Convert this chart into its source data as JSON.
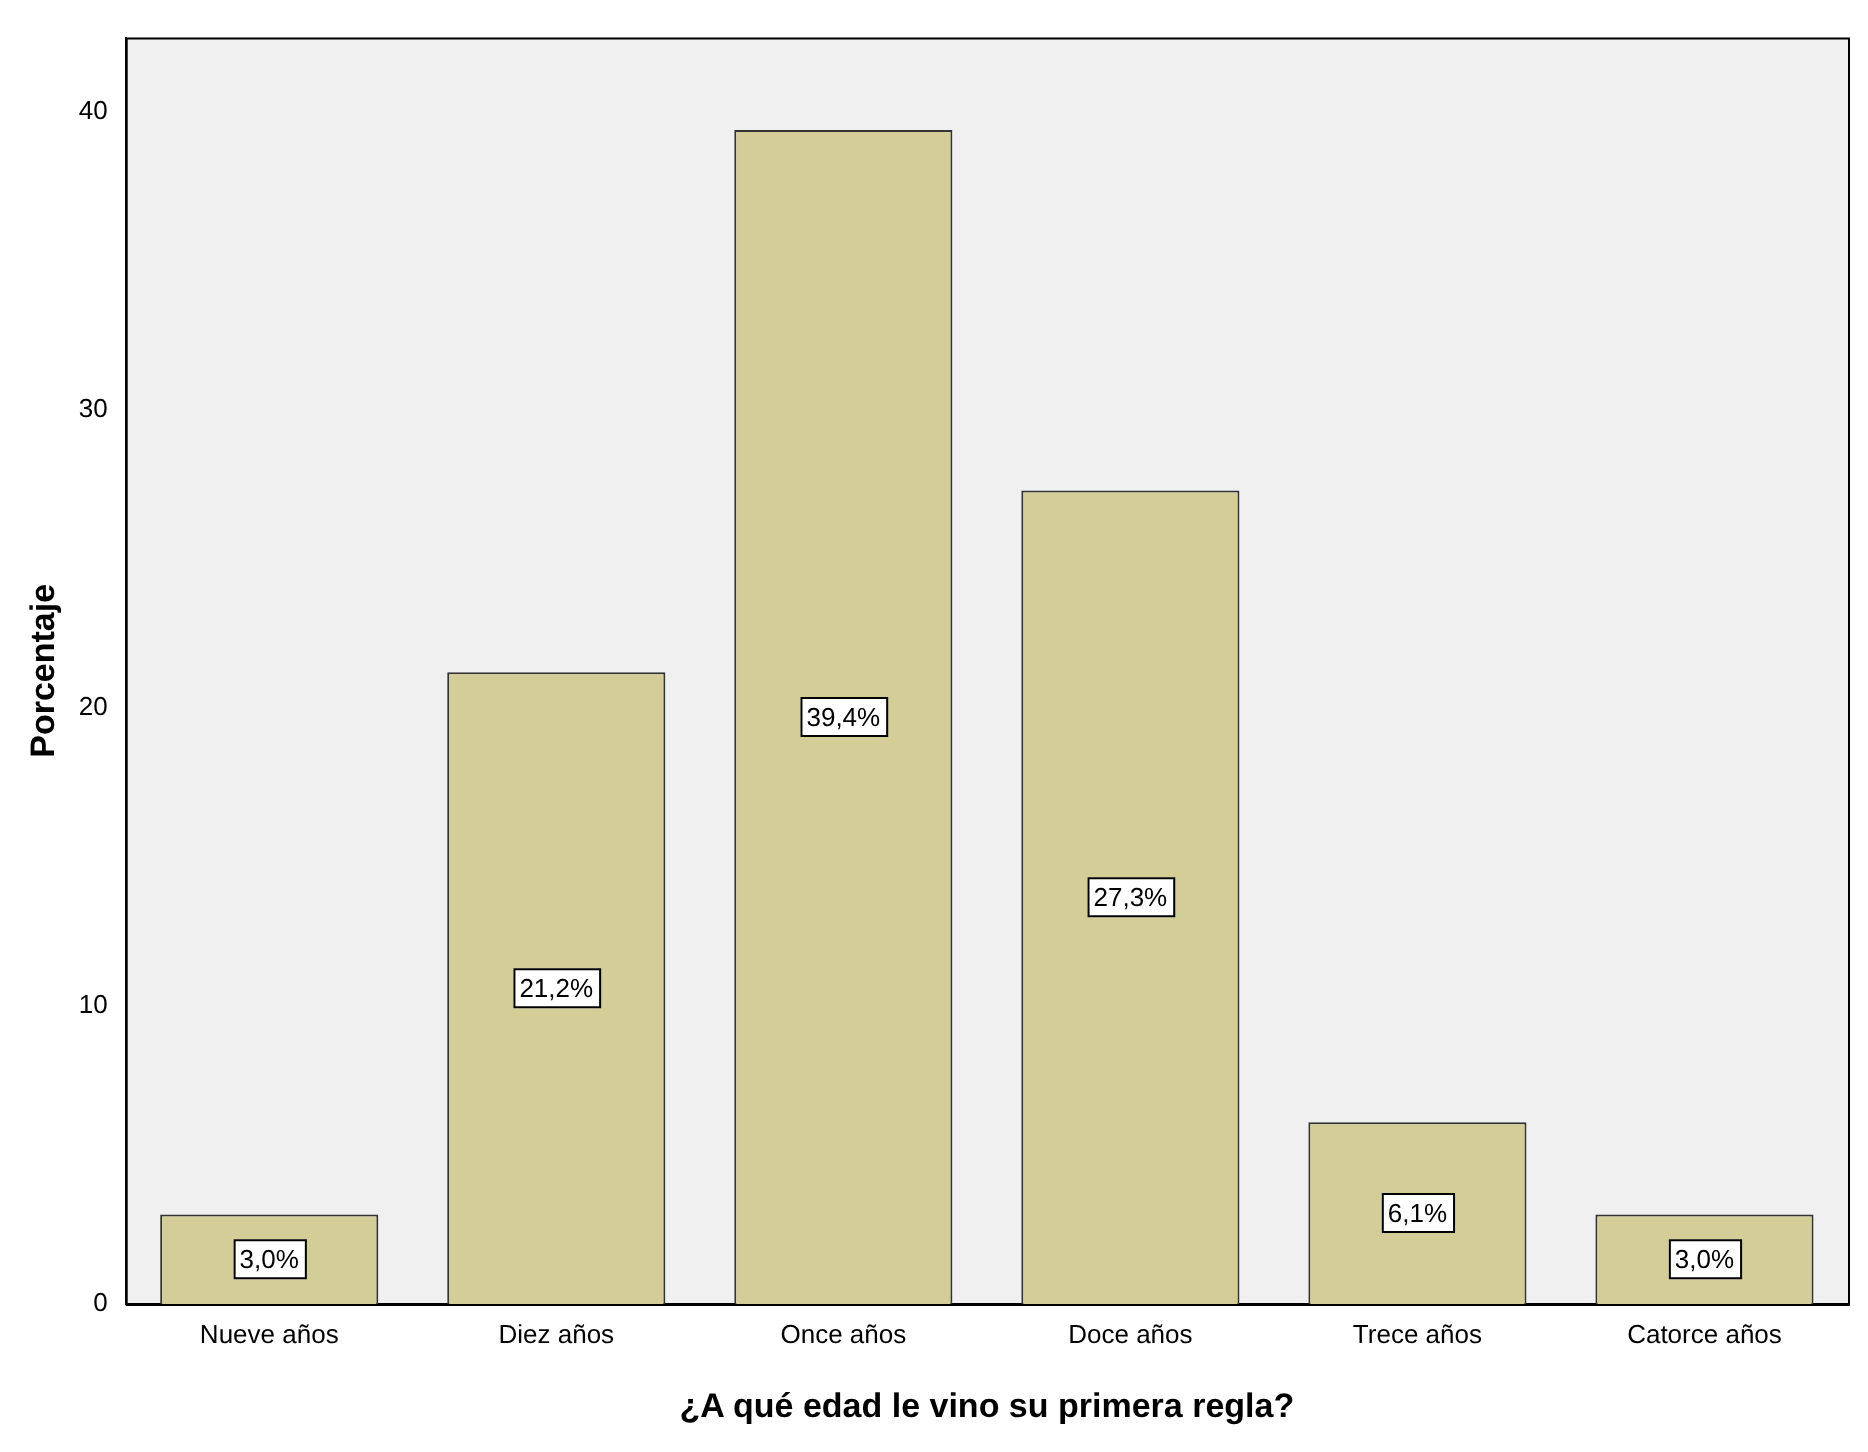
{
  "chart_data": {
    "type": "bar",
    "xlabel": "¿A qué edad le vino su primera regla?",
    "ylabel": "Porcentaje",
    "categories": [
      "Nueve años",
      "Diez años",
      "Once años",
      "Doce años",
      "Trece años",
      "Catorce años"
    ],
    "values": [
      3.0,
      21.2,
      39.4,
      27.3,
      6.1,
      3.0
    ],
    "value_labels": [
      "3,0%",
      "21,2%",
      "39,4%",
      "27,3%",
      "6,1%",
      "3,0%"
    ],
    "color": "#d3ce97",
    "ylim": [
      0,
      42.5
    ],
    "yticks": [
      0,
      10,
      20,
      30,
      40
    ],
    "grid": false,
    "legend": false
  }
}
